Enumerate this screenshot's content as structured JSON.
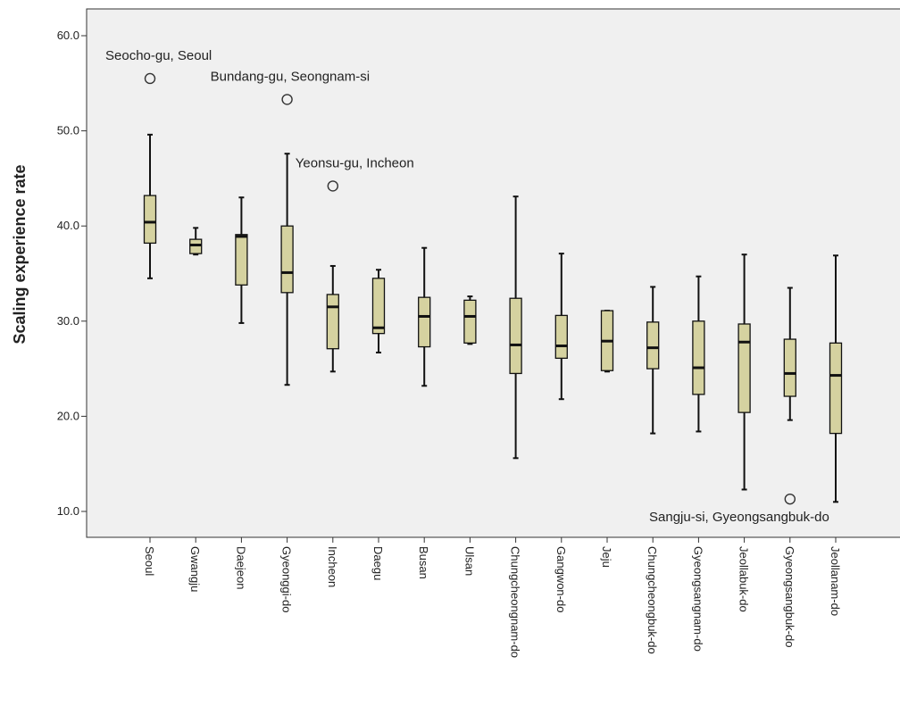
{
  "chart_data": {
    "type": "boxplot",
    "ylabel": "Scaling experience rate",
    "xlabel": "",
    "ylim": [
      8,
      64
    ],
    "yticks": [
      {
        "value": 10,
        "label": "10.0"
      },
      {
        "value": 20,
        "label": "20.0"
      },
      {
        "value": 30,
        "label": "30.0"
      },
      {
        "value": 40,
        "label": "40.0"
      },
      {
        "value": 50,
        "label": "50.0"
      },
      {
        "value": 60,
        "label": "60.0"
      }
    ],
    "grid": false,
    "colors": {
      "plot_bg": "#f0f0f0",
      "box_fill": "#d5d2a0",
      "stroke": "#111111"
    },
    "categories": [
      "Seoul",
      "Gwangju",
      "Daejeon",
      "Gyeonggi-do",
      "Incheon",
      "Daegu",
      "Busan",
      "Ulsan",
      "Chungcheongnam-do",
      "Gangwon-do",
      "Jeju",
      "Chungcheongbuk-do",
      "Gyeongsangnam-do",
      "Jeollabuk-do",
      "Gyeongsangbuk-do",
      "Jeollanam-do"
    ],
    "boxes": [
      {
        "min": 34.5,
        "q1": 38.2,
        "median": 40.4,
        "q3": 43.2,
        "max": 49.6
      },
      {
        "min": 37.0,
        "q1": 37.1,
        "median": 38.0,
        "q3": 38.6,
        "max": 39.8
      },
      {
        "min": 29.8,
        "q1": 33.8,
        "median": 38.9,
        "q3": 39.1,
        "max": 43.0
      },
      {
        "min": 23.3,
        "q1": 33.0,
        "median": 35.1,
        "q3": 40.0,
        "max": 47.6
      },
      {
        "min": 24.7,
        "q1": 27.1,
        "median": 31.5,
        "q3": 32.8,
        "max": 35.8
      },
      {
        "min": 26.7,
        "q1": 28.7,
        "median": 29.3,
        "q3": 34.5,
        "max": 35.4
      },
      {
        "min": 23.2,
        "q1": 27.3,
        "median": 30.5,
        "q3": 32.5,
        "max": 37.7
      },
      {
        "min": 27.6,
        "q1": 27.7,
        "median": 30.5,
        "q3": 32.2,
        "max": 32.6
      },
      {
        "min": 15.6,
        "q1": 24.5,
        "median": 27.5,
        "q3": 32.4,
        "max": 43.1
      },
      {
        "min": 21.8,
        "q1": 26.1,
        "median": 27.4,
        "q3": 30.6,
        "max": 37.1
      },
      {
        "min": 24.7,
        "q1": 24.8,
        "median": 27.9,
        "q3": 31.1,
        "max": 31.1
      },
      {
        "min": 18.2,
        "q1": 25.0,
        "median": 27.2,
        "q3": 29.9,
        "max": 33.6
      },
      {
        "min": 18.4,
        "q1": 22.3,
        "median": 25.1,
        "q3": 30.0,
        "max": 34.7
      },
      {
        "min": 12.3,
        "q1": 20.4,
        "median": 27.8,
        "q3": 29.7,
        "max": 37.0
      },
      {
        "min": 19.6,
        "q1": 22.1,
        "median": 24.5,
        "q3": 28.1,
        "max": 33.5
      },
      {
        "min": 11.0,
        "q1": 18.2,
        "median": 24.3,
        "q3": 27.7,
        "max": 36.9
      }
    ],
    "outliers": [
      {
        "category_index": 0,
        "value": 55.5,
        "label": "Seocho-gu, Seoul"
      },
      {
        "category_index": 3,
        "value": 53.3,
        "label": "Bundang-gu, Seongnam-si"
      },
      {
        "category_index": 4,
        "value": 44.2,
        "label": "Yeonsu-gu, Incheon"
      },
      {
        "category_index": 14,
        "value": 11.3,
        "label": "Sangju-si, Gyeongsangbuk-do"
      }
    ]
  }
}
